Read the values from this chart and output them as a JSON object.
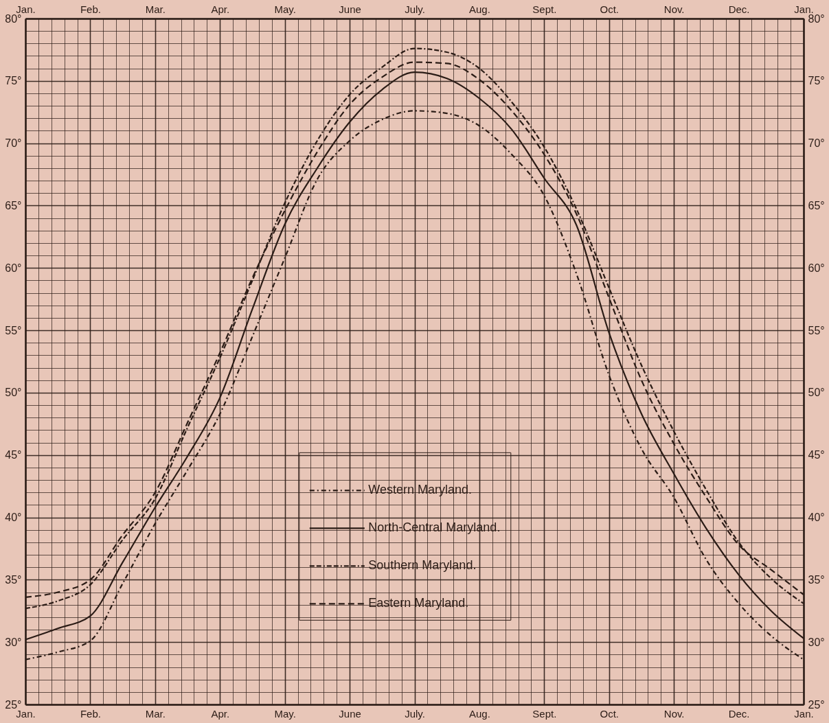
{
  "chart_data": {
    "type": "line",
    "categories": [
      "Jan.",
      null,
      "Feb.",
      null,
      "Mar.",
      null,
      "Apr.",
      null,
      "May.",
      null,
      "June",
      null,
      "July.",
      null,
      "Aug.",
      null,
      "Sept.",
      null,
      "Oct.",
      null,
      "Nov.",
      null,
      "Dec.",
      null,
      "Jan."
    ],
    "series": [
      {
        "name": "Western Maryland.",
        "color": "#2b1c16",
        "line_style": "dashdot",
        "values": [
          28.6,
          29.2,
          30.1,
          34.7,
          39.5,
          43.8,
          48.3,
          54.5,
          60.8,
          67.1,
          70.2,
          71.9,
          72.6,
          72.4,
          71.4,
          69.1,
          65.8,
          59.5,
          51.4,
          45.5,
          41.6,
          36.6,
          33.1,
          30.5,
          28.6
        ]
      },
      {
        "name": "North-Central Maryland.",
        "color": "#2b1c16",
        "line_style": "solid",
        "values": [
          30.2,
          31.1,
          32.1,
          36.4,
          40.8,
          44.9,
          49.6,
          56.7,
          63.5,
          68.0,
          71.7,
          74.3,
          75.7,
          75.2,
          73.6,
          71.1,
          67.2,
          63.4,
          54.8,
          48.3,
          43.5,
          39.1,
          35.4,
          32.5,
          30.3
        ]
      },
      {
        "name": "Southern Maryland.",
        "color": "#2b1c16",
        "line_style": "dashdashdot",
        "values": [
          32.7,
          33.3,
          34.6,
          38.2,
          41.5,
          47.2,
          52.8,
          59.0,
          65.2,
          70.2,
          73.9,
          76.1,
          77.6,
          77.3,
          76.0,
          73.3,
          69.7,
          64.7,
          58.4,
          52.2,
          46.9,
          42.2,
          38.0,
          35.1,
          33.1
        ]
      },
      {
        "name": "Eastern Maryland.",
        "color": "#2b1c16",
        "line_style": "dashed",
        "values": [
          33.6,
          34.0,
          35.0,
          38.6,
          42.0,
          47.6,
          53.2,
          59.2,
          64.6,
          69.3,
          73.1,
          75.3,
          76.5,
          76.4,
          75.1,
          72.6,
          69.1,
          64.3,
          57.6,
          51.0,
          45.9,
          41.6,
          37.8,
          35.8,
          33.8
        ]
      }
    ],
    "ylim": [
      25,
      80
    ],
    "yticks": [
      {
        "value": 25,
        "label": "25°"
      },
      {
        "value": 30,
        "label": "30°"
      },
      {
        "value": 35,
        "label": "35°"
      },
      {
        "value": 40,
        "label": "40°"
      },
      {
        "value": 45,
        "label": "45°"
      },
      {
        "value": 50,
        "label": "50°"
      },
      {
        "value": 55,
        "label": "55°"
      },
      {
        "value": 60,
        "label": "60°"
      },
      {
        "value": 65,
        "label": "65°"
      },
      {
        "value": 70,
        "label": "70°"
      },
      {
        "value": 75,
        "label": "75°"
      },
      {
        "value": 80,
        "label": "80°"
      }
    ],
    "y2lim": [
      25,
      80
    ],
    "y2ticks": [
      {
        "value": 25,
        "label": "25°"
      },
      {
        "value": 30,
        "label": "30°"
      },
      {
        "value": 35,
        "label": "35°"
      },
      {
        "value": 40,
        "label": "40°"
      },
      {
        "value": 45,
        "label": "45°"
      },
      {
        "value": 50,
        "label": "50°"
      },
      {
        "value": 55,
        "label": "55°"
      },
      {
        "value": 60,
        "label": "60°"
      },
      {
        "value": 65,
        "label": "65°"
      },
      {
        "value": 70,
        "label": "70°"
      },
      {
        "value": 75,
        "label": "75°"
      },
      {
        "value": 80,
        "label": "80°"
      }
    ],
    "grid": true,
    "legend": "center",
    "marker": "none"
  }
}
